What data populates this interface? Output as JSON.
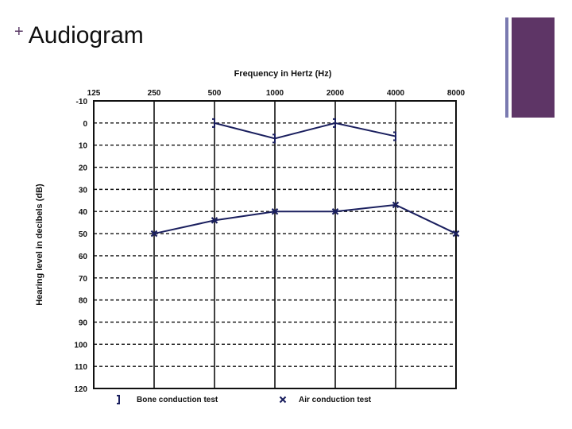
{
  "slide": {
    "title": "Audiogram",
    "accent_color": "#5e3566",
    "decor_line_color": "#7a7ab0"
  },
  "chart_data": {
    "type": "line",
    "title": "Frequency in Hertz (Hz)",
    "xlabel": "Frequency in Hertz (Hz)",
    "ylabel": "Hearing level in decibels (dB)",
    "categories": [
      "125",
      "250",
      "500",
      "1000",
      "2000",
      "4000",
      "8000"
    ],
    "yticks": [
      "-10",
      "0",
      "10",
      "20",
      "30",
      "40",
      "50",
      "60",
      "70",
      "80",
      "90",
      "100",
      "110",
      "120"
    ],
    "ylim": [
      -10,
      120
    ],
    "y_inverted": true,
    "grid": "dashed horizontal, solid vertical",
    "legend_placement": "bottom",
    "line_color": "#1a1f5e",
    "series": [
      {
        "name": "Bone conduction test",
        "marker": "]",
        "x": [
          "500",
          "1000",
          "2000",
          "4000"
        ],
        "values": [
          0,
          7,
          0,
          6
        ]
      },
      {
        "name": "Air conduction test",
        "marker": "x",
        "x": [
          "250",
          "500",
          "1000",
          "2000",
          "4000",
          "8000"
        ],
        "values": [
          50,
          44,
          40,
          40,
          37,
          50
        ]
      }
    ],
    "legend": [
      {
        "symbol": "]",
        "label": "Bone conduction test"
      },
      {
        "symbol": "x",
        "label": "Air conduction test"
      }
    ]
  }
}
